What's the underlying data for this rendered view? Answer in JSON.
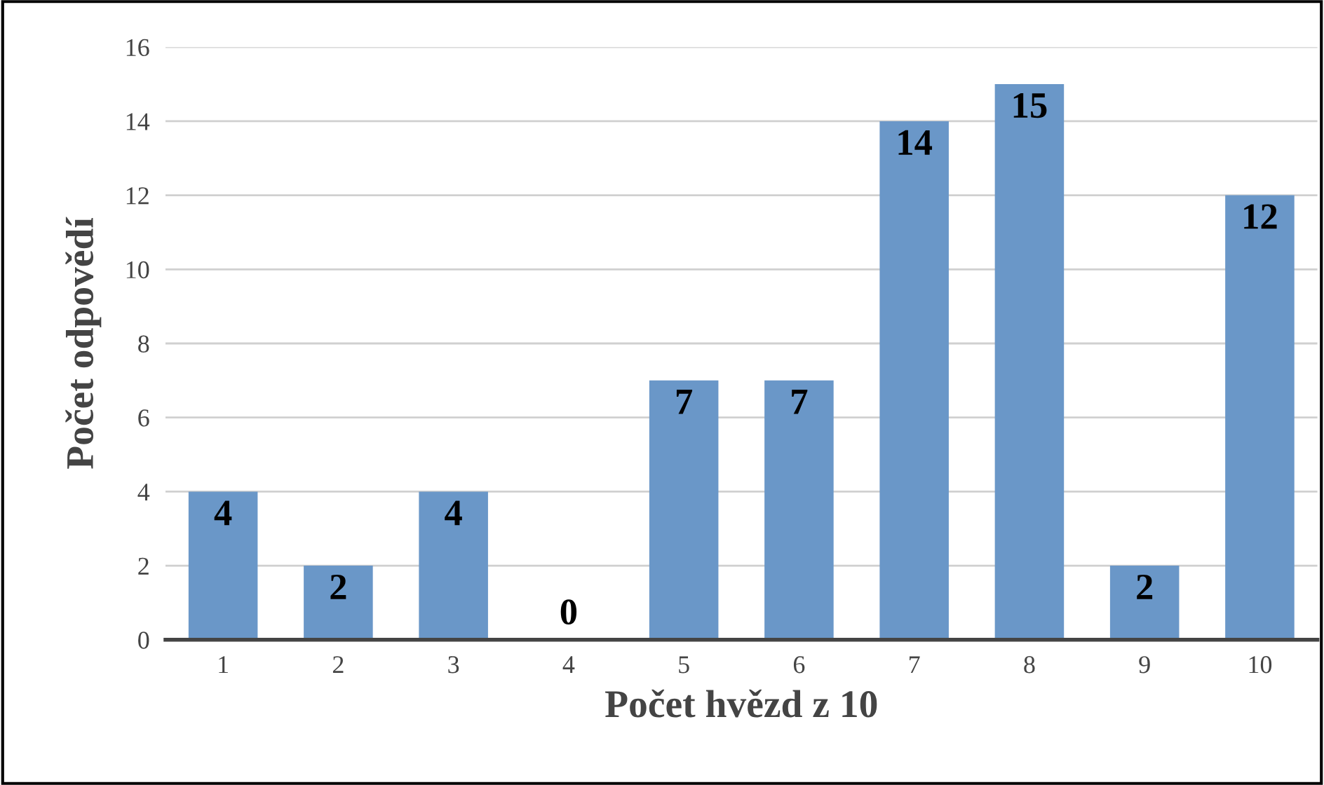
{
  "chart_data": {
    "type": "bar",
    "xlabel": "Počet hvězd z 10",
    "ylabel": "Počet odpovědí",
    "categories": [
      "1",
      "2",
      "3",
      "4",
      "5",
      "6",
      "7",
      "8",
      "9",
      "10"
    ],
    "values": [
      4,
      2,
      4,
      0,
      7,
      7,
      14,
      15,
      2,
      12
    ],
    "color": "#6a97c8",
    "ylim": [
      0,
      16
    ],
    "yticks": [
      0,
      2,
      4,
      6,
      8,
      10,
      12,
      14,
      16
    ],
    "grid": "y",
    "data_labels": true
  }
}
